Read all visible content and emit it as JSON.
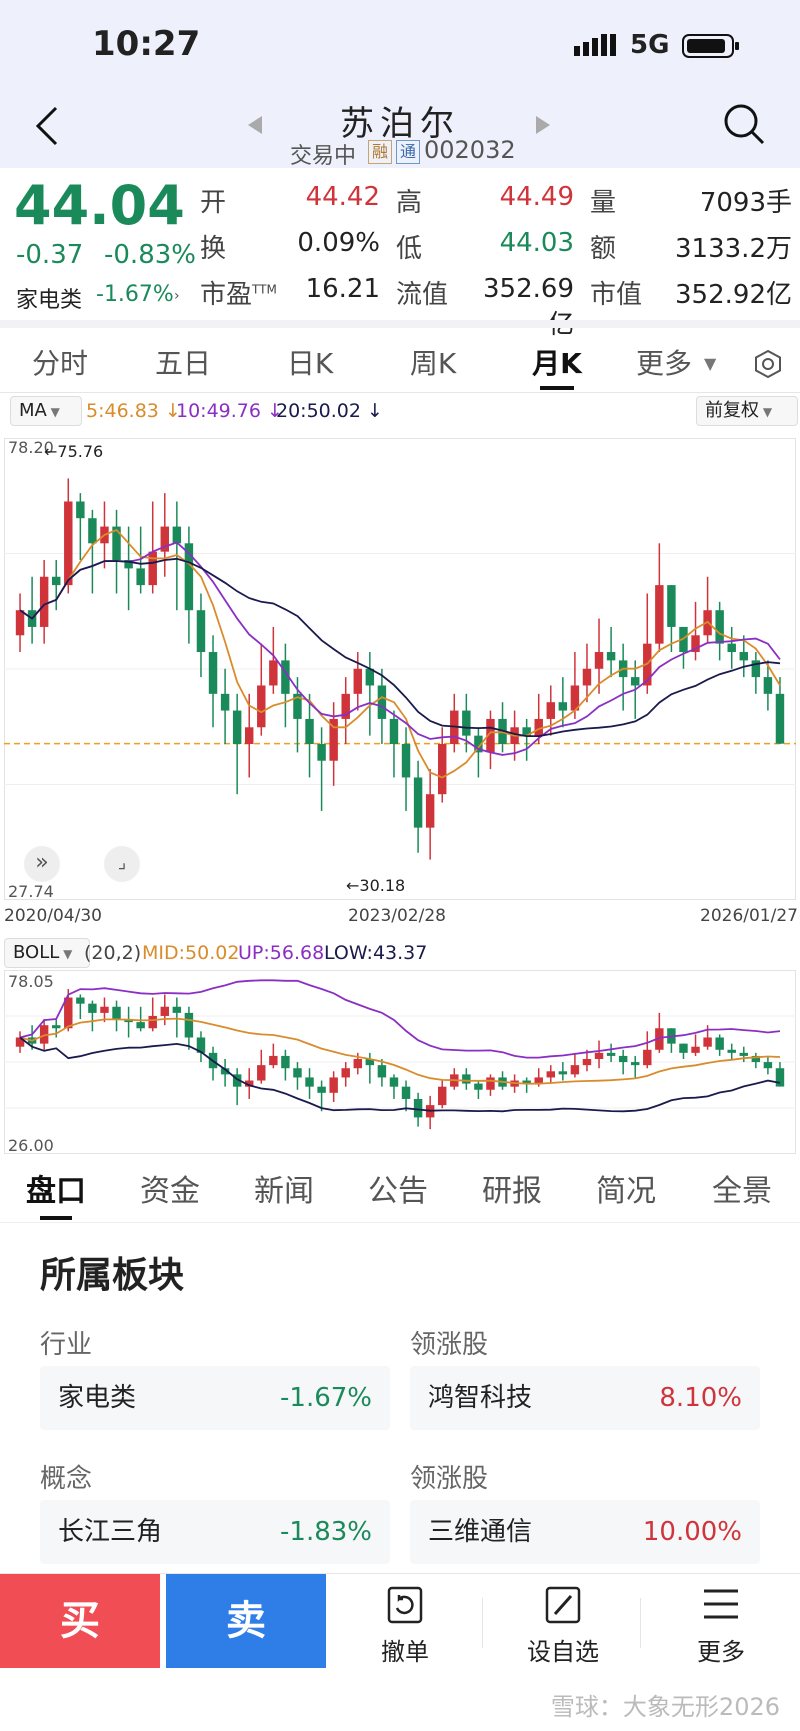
{
  "status": {
    "time": "10:27",
    "network": "5G"
  },
  "header": {
    "title": "苏泊尔",
    "trade_status": "交易中",
    "badge_margin": "融",
    "badge_connect": "通",
    "code": "002032"
  },
  "quote": {
    "price": "44.04",
    "change": "-0.37",
    "change_pct": "-0.83%",
    "sector": "家电类",
    "sector_pct": "-1.67%",
    "open_label": "开",
    "open": "44.42",
    "high_label": "高",
    "high": "44.49",
    "volume_label": "量",
    "volume": "7093手",
    "turnover_label": "换",
    "turnover": "0.09%",
    "low_label": "低",
    "low": "44.03",
    "amount_label": "额",
    "amount": "3133.2万",
    "pe_label": "市盈",
    "pe_sup": "TTM",
    "pe": "16.21",
    "float_cap_label": "流值",
    "float_cap": "352.69亿",
    "mkt_cap_label": "市值",
    "mkt_cap": "352.92亿"
  },
  "tabs": [
    "分时",
    "五日",
    "日K",
    "周K",
    "月K",
    "更多"
  ],
  "tab_more_arrow": "▼",
  "ma": {
    "label": "MA",
    "ma5": "5:46.83",
    "ma10": "10:49.76",
    "ma20": "20:50.02",
    "adjust": "前复权",
    "arrow": "↓"
  },
  "chart_data": {
    "type": "candlestick",
    "period": "monthly",
    "y_max_label": "78.20",
    "y_min_label": "27.74",
    "x_ticks": [
      "2020/04/30",
      "2023/02/28",
      "2026/01/27"
    ],
    "annotations": [
      "←75.76",
      "←30.18"
    ],
    "ref_line": 44.04,
    "ylim": [
      27.74,
      78.2
    ],
    "candles": [
      [
        57,
        60,
        62,
        55
      ],
      [
        60,
        58,
        64,
        56
      ],
      [
        58,
        64,
        66,
        56
      ],
      [
        64,
        63,
        66,
        60
      ],
      [
        63,
        73,
        75.76,
        62
      ],
      [
        73,
        71,
        74,
        66
      ],
      [
        71,
        68,
        72,
        62
      ],
      [
        68,
        70,
        73,
        65
      ],
      [
        70,
        66,
        72,
        62
      ],
      [
        66,
        65,
        70,
        60
      ],
      [
        65,
        63,
        70,
        62
      ],
      [
        63,
        67,
        73,
        62
      ],
      [
        67,
        70,
        74,
        64
      ],
      [
        70,
        68,
        73,
        60
      ],
      [
        68,
        60,
        70,
        56
      ],
      [
        60,
        55,
        62,
        52
      ],
      [
        55,
        50,
        57,
        46
      ],
      [
        50,
        48,
        53,
        44
      ],
      [
        48,
        44,
        50,
        38
      ],
      [
        44,
        46,
        50,
        40
      ],
      [
        46,
        51,
        56,
        45
      ],
      [
        51,
        54,
        58,
        50
      ],
      [
        54,
        50,
        56,
        46
      ],
      [
        50,
        47,
        52,
        43
      ],
      [
        47,
        44,
        50,
        40
      ],
      [
        44,
        42,
        46,
        36
      ],
      [
        42,
        47,
        49,
        39
      ],
      [
        47,
        50,
        52,
        44
      ],
      [
        50,
        53,
        55,
        48
      ],
      [
        53,
        51,
        55,
        45
      ],
      [
        51,
        47,
        53,
        44
      ],
      [
        47,
        44,
        48,
        40
      ],
      [
        44,
        40,
        46,
        36
      ],
      [
        40,
        34,
        42,
        31
      ],
      [
        34,
        38,
        41,
        30.18
      ],
      [
        38,
        44,
        46,
        37
      ],
      [
        44,
        48,
        50,
        43
      ],
      [
        48,
        45,
        50,
        43
      ],
      [
        45,
        43,
        46,
        40
      ],
      [
        43,
        47,
        48,
        41
      ],
      [
        47,
        44,
        49,
        43
      ],
      [
        44,
        46,
        48,
        42
      ],
      [
        46,
        45,
        47,
        42
      ],
      [
        45,
        47,
        50,
        44
      ],
      [
        47,
        49,
        51,
        45
      ],
      [
        49,
        48,
        52,
        46
      ],
      [
        48,
        51,
        55,
        47
      ],
      [
        51,
        53,
        56,
        49
      ],
      [
        53,
        55,
        59,
        50
      ],
      [
        55,
        54,
        58,
        52
      ],
      [
        54,
        52,
        56,
        48
      ],
      [
        52,
        51,
        54,
        47
      ],
      [
        51,
        56,
        62,
        50
      ],
      [
        56,
        63,
        68,
        55
      ],
      [
        63,
        58,
        63,
        55
      ],
      [
        58,
        55,
        58,
        53
      ],
      [
        55,
        57,
        61,
        54
      ],
      [
        57,
        60,
        64,
        56
      ],
      [
        60,
        56,
        61,
        54
      ],
      [
        56,
        55,
        58,
        53
      ],
      [
        55,
        54,
        57,
        52
      ],
      [
        54,
        52,
        55,
        50
      ],
      [
        52,
        50,
        54,
        48
      ],
      [
        50,
        44.04,
        52,
        44
      ]
    ],
    "ma_series": [
      {
        "name": "5",
        "color": "#d98c2c"
      },
      {
        "name": "10",
        "color": "#8a2fc4"
      },
      {
        "name": "20",
        "color": "#1a1a4d"
      }
    ],
    "boll": {
      "label": "BOLL",
      "params": "(20,2)",
      "mid": "MID:50.02",
      "up": "UP:56.68",
      "low": "LOW:43.37",
      "y_max_label": "78.05",
      "y_min_label": "26.00"
    }
  },
  "bottom_tabs": [
    "盘口",
    "资金",
    "新闻",
    "公告",
    "研报",
    "简况",
    "全景"
  ],
  "sectors": {
    "title": "所属板块",
    "industry_label": "行业",
    "leader_label": "领涨股",
    "industry_name": "家电类",
    "industry_pct": "-1.67%",
    "industry_leader": "鸿智科技",
    "industry_leader_pct": "8.10%",
    "concept_label": "概念",
    "concept_leader_label": "领涨股",
    "concept_name": "长江三角",
    "concept_pct": "-1.83%",
    "concept_leader": "三维通信",
    "concept_leader_pct": "10.00%"
  },
  "toolbar": {
    "buy": "买",
    "sell": "卖",
    "cancel": "撤单",
    "watchlist": "设自选",
    "more": "更多"
  },
  "watermark": "雪球：大象无形2026",
  "colors": {
    "up": "#d0343b",
    "down": "#1b8a5a",
    "buy": "#f04d55",
    "sell": "#2f7ee8"
  }
}
